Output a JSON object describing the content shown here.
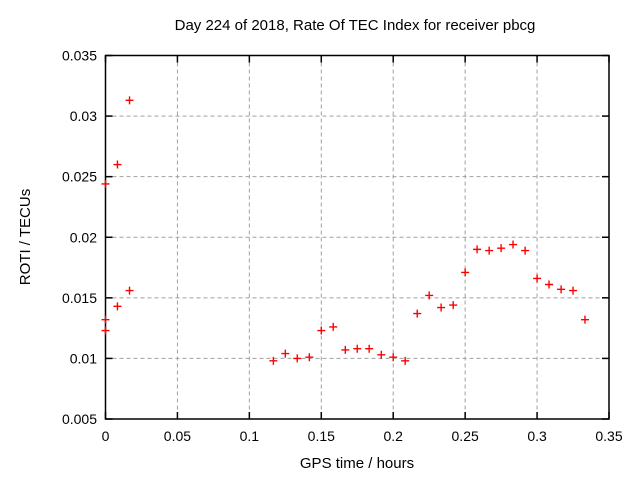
{
  "chart_data": {
    "type": "scatter",
    "title": "Day 224 of 2018, Rate Of TEC Index for receiver pbcg",
    "xlabel": "GPS time / hours",
    "ylabel": "ROTI / TECUs",
    "xlim": [
      0,
      0.35
    ],
    "ylim": [
      0.005,
      0.035
    ],
    "x_ticks": [
      0,
      0.05,
      0.1,
      0.15,
      0.2,
      0.25,
      0.3,
      0.35
    ],
    "x_tick_labels": [
      "0",
      "0.05",
      "0.1",
      "0.15",
      "0.2",
      "0.25",
      "0.3",
      "0.35"
    ],
    "y_ticks": [
      0.005,
      0.01,
      0.015,
      0.02,
      0.025,
      0.03,
      0.035
    ],
    "y_tick_labels": [
      "0.005",
      "0.01",
      "0.015",
      "0.02",
      "0.025",
      "0.03",
      "0.035"
    ],
    "grid": true,
    "legend": null,
    "marker": {
      "shape": "plus",
      "color": "#ff0000",
      "size": 8
    },
    "points": [
      [
        0.0,
        0.0244
      ],
      [
        0.0,
        0.0132
      ],
      [
        0.0,
        0.0123
      ],
      [
        0.0083,
        0.026
      ],
      [
        0.0083,
        0.0143
      ],
      [
        0.0167,
        0.0313
      ],
      [
        0.0167,
        0.0156
      ],
      [
        0.1167,
        0.0098
      ],
      [
        0.125,
        0.0104
      ],
      [
        0.1333,
        0.01
      ],
      [
        0.1417,
        0.0101
      ],
      [
        0.15,
        0.0123
      ],
      [
        0.1583,
        0.0126
      ],
      [
        0.1667,
        0.0107
      ],
      [
        0.175,
        0.0108
      ],
      [
        0.1833,
        0.0108
      ],
      [
        0.1917,
        0.0103
      ],
      [
        0.2,
        0.0101
      ],
      [
        0.2083,
        0.0098
      ],
      [
        0.2167,
        0.0137
      ],
      [
        0.225,
        0.0152
      ],
      [
        0.2333,
        0.0142
      ],
      [
        0.2417,
        0.0144
      ],
      [
        0.25,
        0.0171
      ],
      [
        0.2583,
        0.019
      ],
      [
        0.2667,
        0.0189
      ],
      [
        0.275,
        0.0191
      ],
      [
        0.2833,
        0.0194
      ],
      [
        0.2917,
        0.0189
      ],
      [
        0.3,
        0.0166
      ],
      [
        0.3083,
        0.0161
      ],
      [
        0.3167,
        0.0157
      ],
      [
        0.325,
        0.0156
      ],
      [
        0.3333,
        0.0132
      ]
    ],
    "colors": {
      "marker": "#ff0000",
      "grid": "#a0a0a0",
      "frame": "#000000",
      "background": "#ffffff",
      "text": "#000000"
    }
  }
}
